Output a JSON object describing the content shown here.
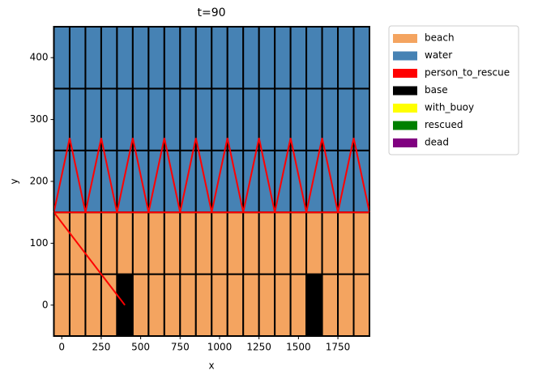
{
  "chart_data": {
    "type": "grid",
    "title": "t=90",
    "xlabel": "x",
    "ylabel": "y",
    "xlim": [
      -50,
      1950
    ],
    "ylim": [
      -50,
      450
    ],
    "xticks": [
      0,
      250,
      500,
      750,
      1000,
      1250,
      1500,
      1750
    ],
    "yticks": [
      0,
      100,
      200,
      300,
      400
    ],
    "legend": [
      {
        "name": "beach",
        "color": "#f4a460"
      },
      {
        "name": "water",
        "color": "#4682b4"
      },
      {
        "name": "person_to_rescue",
        "color": "#ff0000"
      },
      {
        "name": "base",
        "color": "#000000"
      },
      {
        "name": "with_buoy",
        "color": "#ffff00"
      },
      {
        "name": "rescued",
        "color": "#008000"
      },
      {
        "name": "dead",
        "color": "#800080"
      }
    ],
    "cells": [
      [
        0,
        0,
        0,
        0,
        3,
        0,
        0,
        0,
        0,
        0,
        0,
        0,
        0,
        0,
        0,
        0,
        3,
        0,
        0,
        0
      ],
      [
        0,
        0,
        0,
        0,
        0,
        0,
        0,
        0,
        0,
        0,
        0,
        0,
        0,
        0,
        0,
        0,
        0,
        0,
        0,
        0
      ],
      [
        1,
        1,
        1,
        1,
        1,
        1,
        1,
        1,
        1,
        1,
        1,
        1,
        1,
        1,
        1,
        1,
        1,
        1,
        1,
        1
      ],
      [
        1,
        1,
        1,
        1,
        1,
        1,
        1,
        1,
        1,
        1,
        1,
        1,
        1,
        1,
        1,
        1,
        1,
        1,
        1,
        1
      ],
      [
        1,
        1,
        1,
        1,
        1,
        1,
        1,
        1,
        1,
        1,
        1,
        1,
        1,
        1,
        1,
        1,
        1,
        1,
        1,
        1
      ]
    ],
    "lines": [
      {
        "color": "#ff0000",
        "x": [
          -50,
          50,
          150,
          250,
          350,
          450,
          550,
          650,
          750,
          850,
          950,
          1050,
          1150,
          1250,
          1350,
          1450,
          1550,
          1650,
          1750,
          1850,
          1950
        ],
        "y": [
          150,
          270,
          150,
          270,
          150,
          270,
          150,
          270,
          150,
          270,
          150,
          270,
          150,
          270,
          150,
          270,
          150,
          270,
          150,
          270,
          150
        ]
      },
      {
        "color": "#ff0000",
        "x": [
          -50,
          1950
        ],
        "y": [
          150,
          150
        ]
      },
      {
        "color": "#ff0000",
        "x": [
          -50,
          400
        ],
        "y": [
          150,
          0
        ]
      }
    ]
  }
}
